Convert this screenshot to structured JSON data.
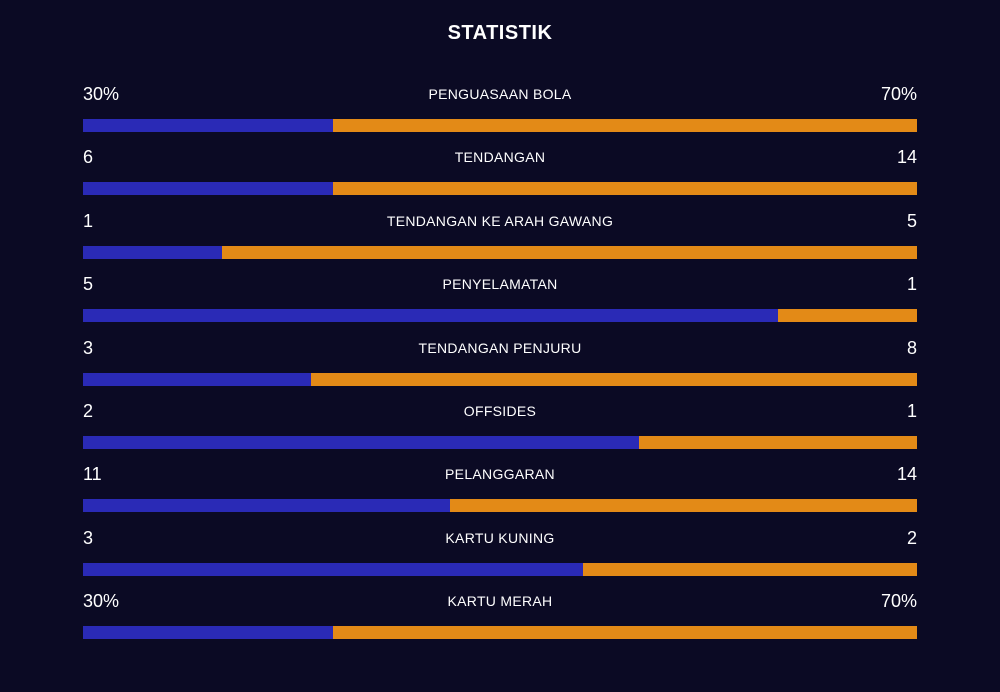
{
  "title": "STATISTIK",
  "colors": {
    "background": "#0b0a24",
    "home_bar": "#2a2ab6",
    "away_bar": "#e38a17"
  },
  "stats": [
    {
      "label": "PENGUASAAN BOLA",
      "home": "30%",
      "away": "70%",
      "home_share": 0.3
    },
    {
      "label": "TENDANGAN",
      "home": "6",
      "away": "14",
      "home_share": 0.3
    },
    {
      "label": "TENDANGAN KE ARAH GAWANG",
      "home": "1",
      "away": "5",
      "home_share": 0.167
    },
    {
      "label": "PENYELAMATAN",
      "home": "5",
      "away": "1",
      "home_share": 0.833
    },
    {
      "label": "TENDANGAN PENJURU",
      "home": "3",
      "away": "8",
      "home_share": 0.273
    },
    {
      "label": "OFFSIDES",
      "home": "2",
      "away": "1",
      "home_share": 0.667
    },
    {
      "label": "PELANGGARAN",
      "home": "11",
      "away": "14",
      "home_share": 0.44
    },
    {
      "label": "KARTU KUNING",
      "home": "3",
      "away": "2",
      "home_share": 0.6
    },
    {
      "label": "KARTU MERAH",
      "home": "30%",
      "away": "70%",
      "home_share": 0.3
    }
  ]
}
